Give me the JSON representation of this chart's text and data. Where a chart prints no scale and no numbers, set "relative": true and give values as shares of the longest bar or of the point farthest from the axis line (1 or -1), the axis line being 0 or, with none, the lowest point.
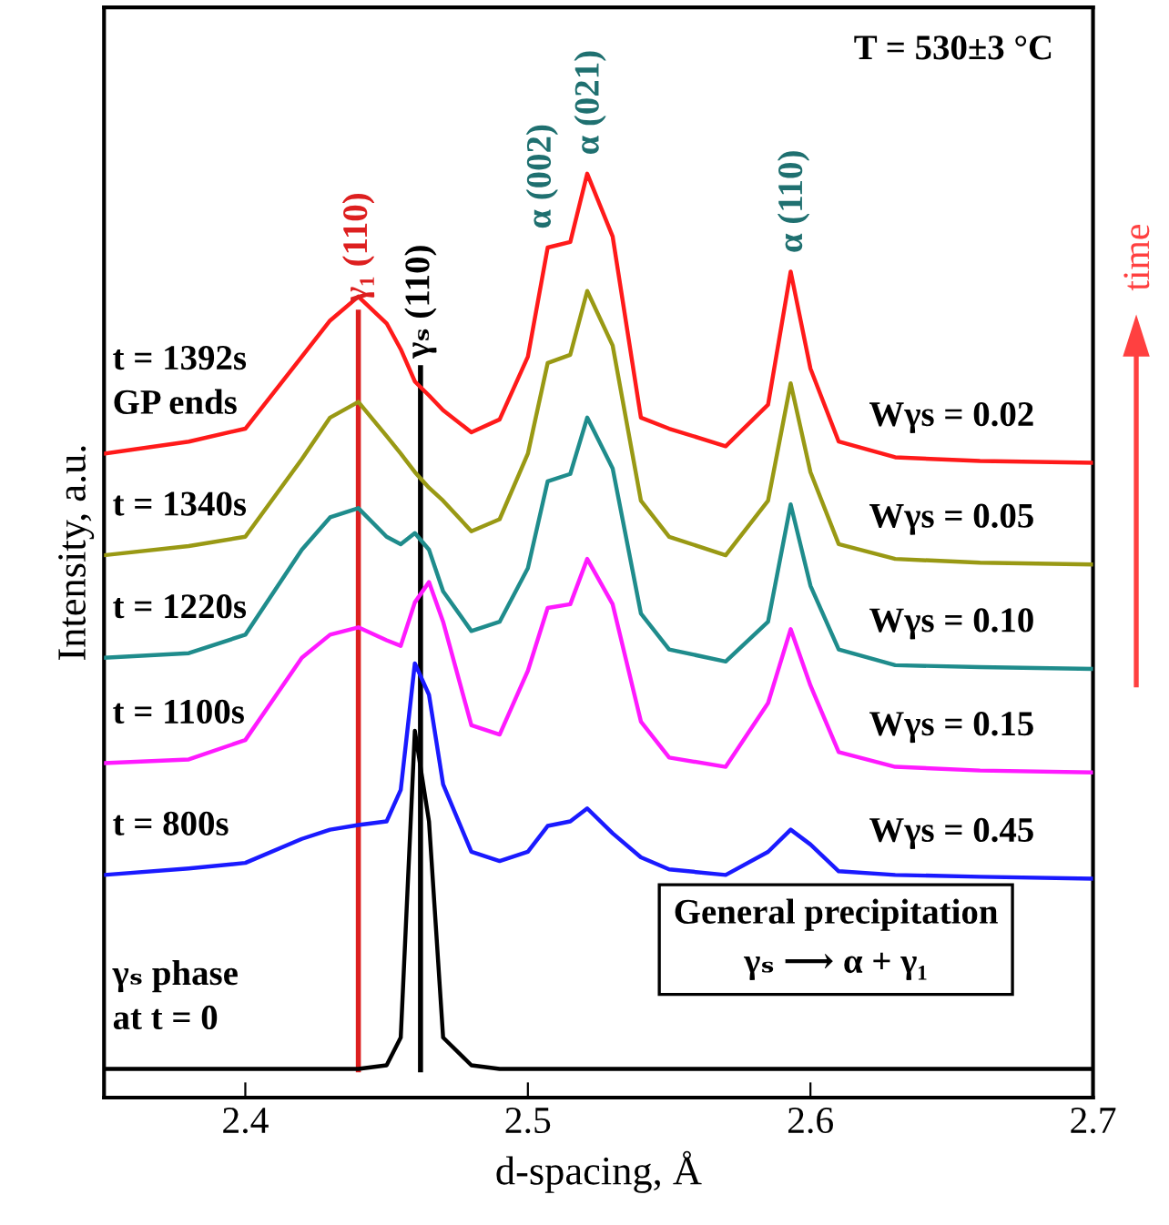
{
  "chart_data": {
    "type": "line",
    "relative": true,
    "title": "T = 530±3 °C",
    "xlabel": "d-spacing, Å",
    "ylabel": "Intensity, a.u.",
    "x": [
      2.35,
      2.38,
      2.4,
      2.42,
      2.43,
      2.44,
      2.45,
      2.455,
      2.46,
      2.465,
      2.47,
      2.48,
      2.49,
      2.5,
      2.507,
      2.515,
      2.521,
      2.53,
      2.54,
      2.55,
      2.57,
      2.585,
      2.593,
      2.6,
      2.61,
      2.63,
      2.66,
      2.7
    ],
    "xlim": [
      2.35,
      2.7
    ],
    "xticks": [
      2.4,
      2.5,
      2.6,
      2.7
    ],
    "legend": false,
    "grid": false,
    "marker": "none",
    "line_style": "solid",
    "series": [
      {
        "name": "t = 1392s\nGP ends",
        "color": "#ff1a1a",
        "values": [
          0.697,
          0.71,
          0.724,
          0.802,
          0.841,
          0.867,
          0.838,
          0.81,
          0.775,
          0.76,
          0.744,
          0.72,
          0.734,
          0.802,
          0.92,
          0.926,
          1.0,
          0.932,
          0.736,
          0.724,
          0.705,
          0.75,
          0.894,
          0.789,
          0.71,
          0.693,
          0.689,
          0.687
        ]
      },
      {
        "name": "t = 1340s",
        "color": "#999914",
        "values": [
          0.587,
          0.597,
          0.607,
          0.691,
          0.736,
          0.753,
          0.716,
          0.697,
          0.677,
          0.66,
          0.646,
          0.613,
          0.626,
          0.697,
          0.795,
          0.804,
          0.873,
          0.814,
          0.646,
          0.607,
          0.587,
          0.646,
          0.773,
          0.677,
          0.599,
          0.583,
          0.579,
          0.577
        ]
      },
      {
        "name": "t = 1220s",
        "color": "#1f8c8c",
        "values": [
          0.476,
          0.481,
          0.501,
          0.593,
          0.628,
          0.638,
          0.607,
          0.599,
          0.611,
          0.593,
          0.548,
          0.505,
          0.515,
          0.573,
          0.667,
          0.675,
          0.736,
          0.681,
          0.524,
          0.485,
          0.472,
          0.515,
          0.642,
          0.554,
          0.485,
          0.468,
          0.466,
          0.464
        ]
      },
      {
        "name": "t = 1100s",
        "color": "#ff1aff",
        "values": [
          0.362,
          0.366,
          0.387,
          0.476,
          0.501,
          0.509,
          0.495,
          0.489,
          0.536,
          0.558,
          0.515,
          0.403,
          0.393,
          0.462,
          0.53,
          0.534,
          0.583,
          0.534,
          0.407,
          0.368,
          0.358,
          0.427,
          0.507,
          0.446,
          0.374,
          0.358,
          0.354,
          0.352
        ]
      },
      {
        "name": "t = 800s",
        "color": "#1a1aff",
        "values": [
          0.241,
          0.248,
          0.254,
          0.28,
          0.29,
          0.295,
          0.299,
          0.333,
          0.47,
          0.436,
          0.339,
          0.266,
          0.256,
          0.266,
          0.294,
          0.299,
          0.313,
          0.286,
          0.26,
          0.247,
          0.241,
          0.266,
          0.29,
          0.274,
          0.245,
          0.241,
          0.239,
          0.237
        ]
      },
      {
        "name": "γₛ phase\nat t = 0",
        "color": "#000000",
        "values": [
          0.031,
          0.031,
          0.031,
          0.031,
          0.031,
          0.031,
          0.035,
          0.065,
          0.397,
          0.299,
          0.065,
          0.035,
          0.031,
          0.031,
          0.031,
          0.031,
          0.031,
          0.031,
          0.031,
          0.031,
          0.031,
          0.031,
          0.031,
          0.031,
          0.031,
          0.031,
          0.031,
          0.031
        ]
      }
    ],
    "ref_lines": [
      {
        "axis": "x",
        "value": 2.44,
        "label": "γ₁ (110)",
        "color": "#dd1f1f"
      },
      {
        "axis": "x",
        "value": 2.462,
        "label": "γₛ (110)",
        "color": "#000000"
      }
    ],
    "annotations": [
      {
        "text": "α (002)",
        "x": 2.507,
        "y": 0.92
      },
      {
        "text": "α (021)",
        "x": 2.521,
        "y": 1.0
      },
      {
        "text": "α (110)",
        "x": 2.593,
        "y": 0.894
      },
      {
        "text": "Wγs = 0.02",
        "x": 2.65,
        "y": 0.689
      },
      {
        "text": "Wγs = 0.05",
        "x": 2.65,
        "y": 0.579
      },
      {
        "text": "Wγs = 0.10",
        "x": 2.65,
        "y": 0.466
      },
      {
        "text": "Wγs = 0.15",
        "x": 2.65,
        "y": 0.354
      },
      {
        "text": "Wγs = 0.45",
        "x": 2.65,
        "y": 0.239
      },
      "General precipitation",
      "γₛ ⟶ α + γ₁",
      "time"
    ]
  }
}
